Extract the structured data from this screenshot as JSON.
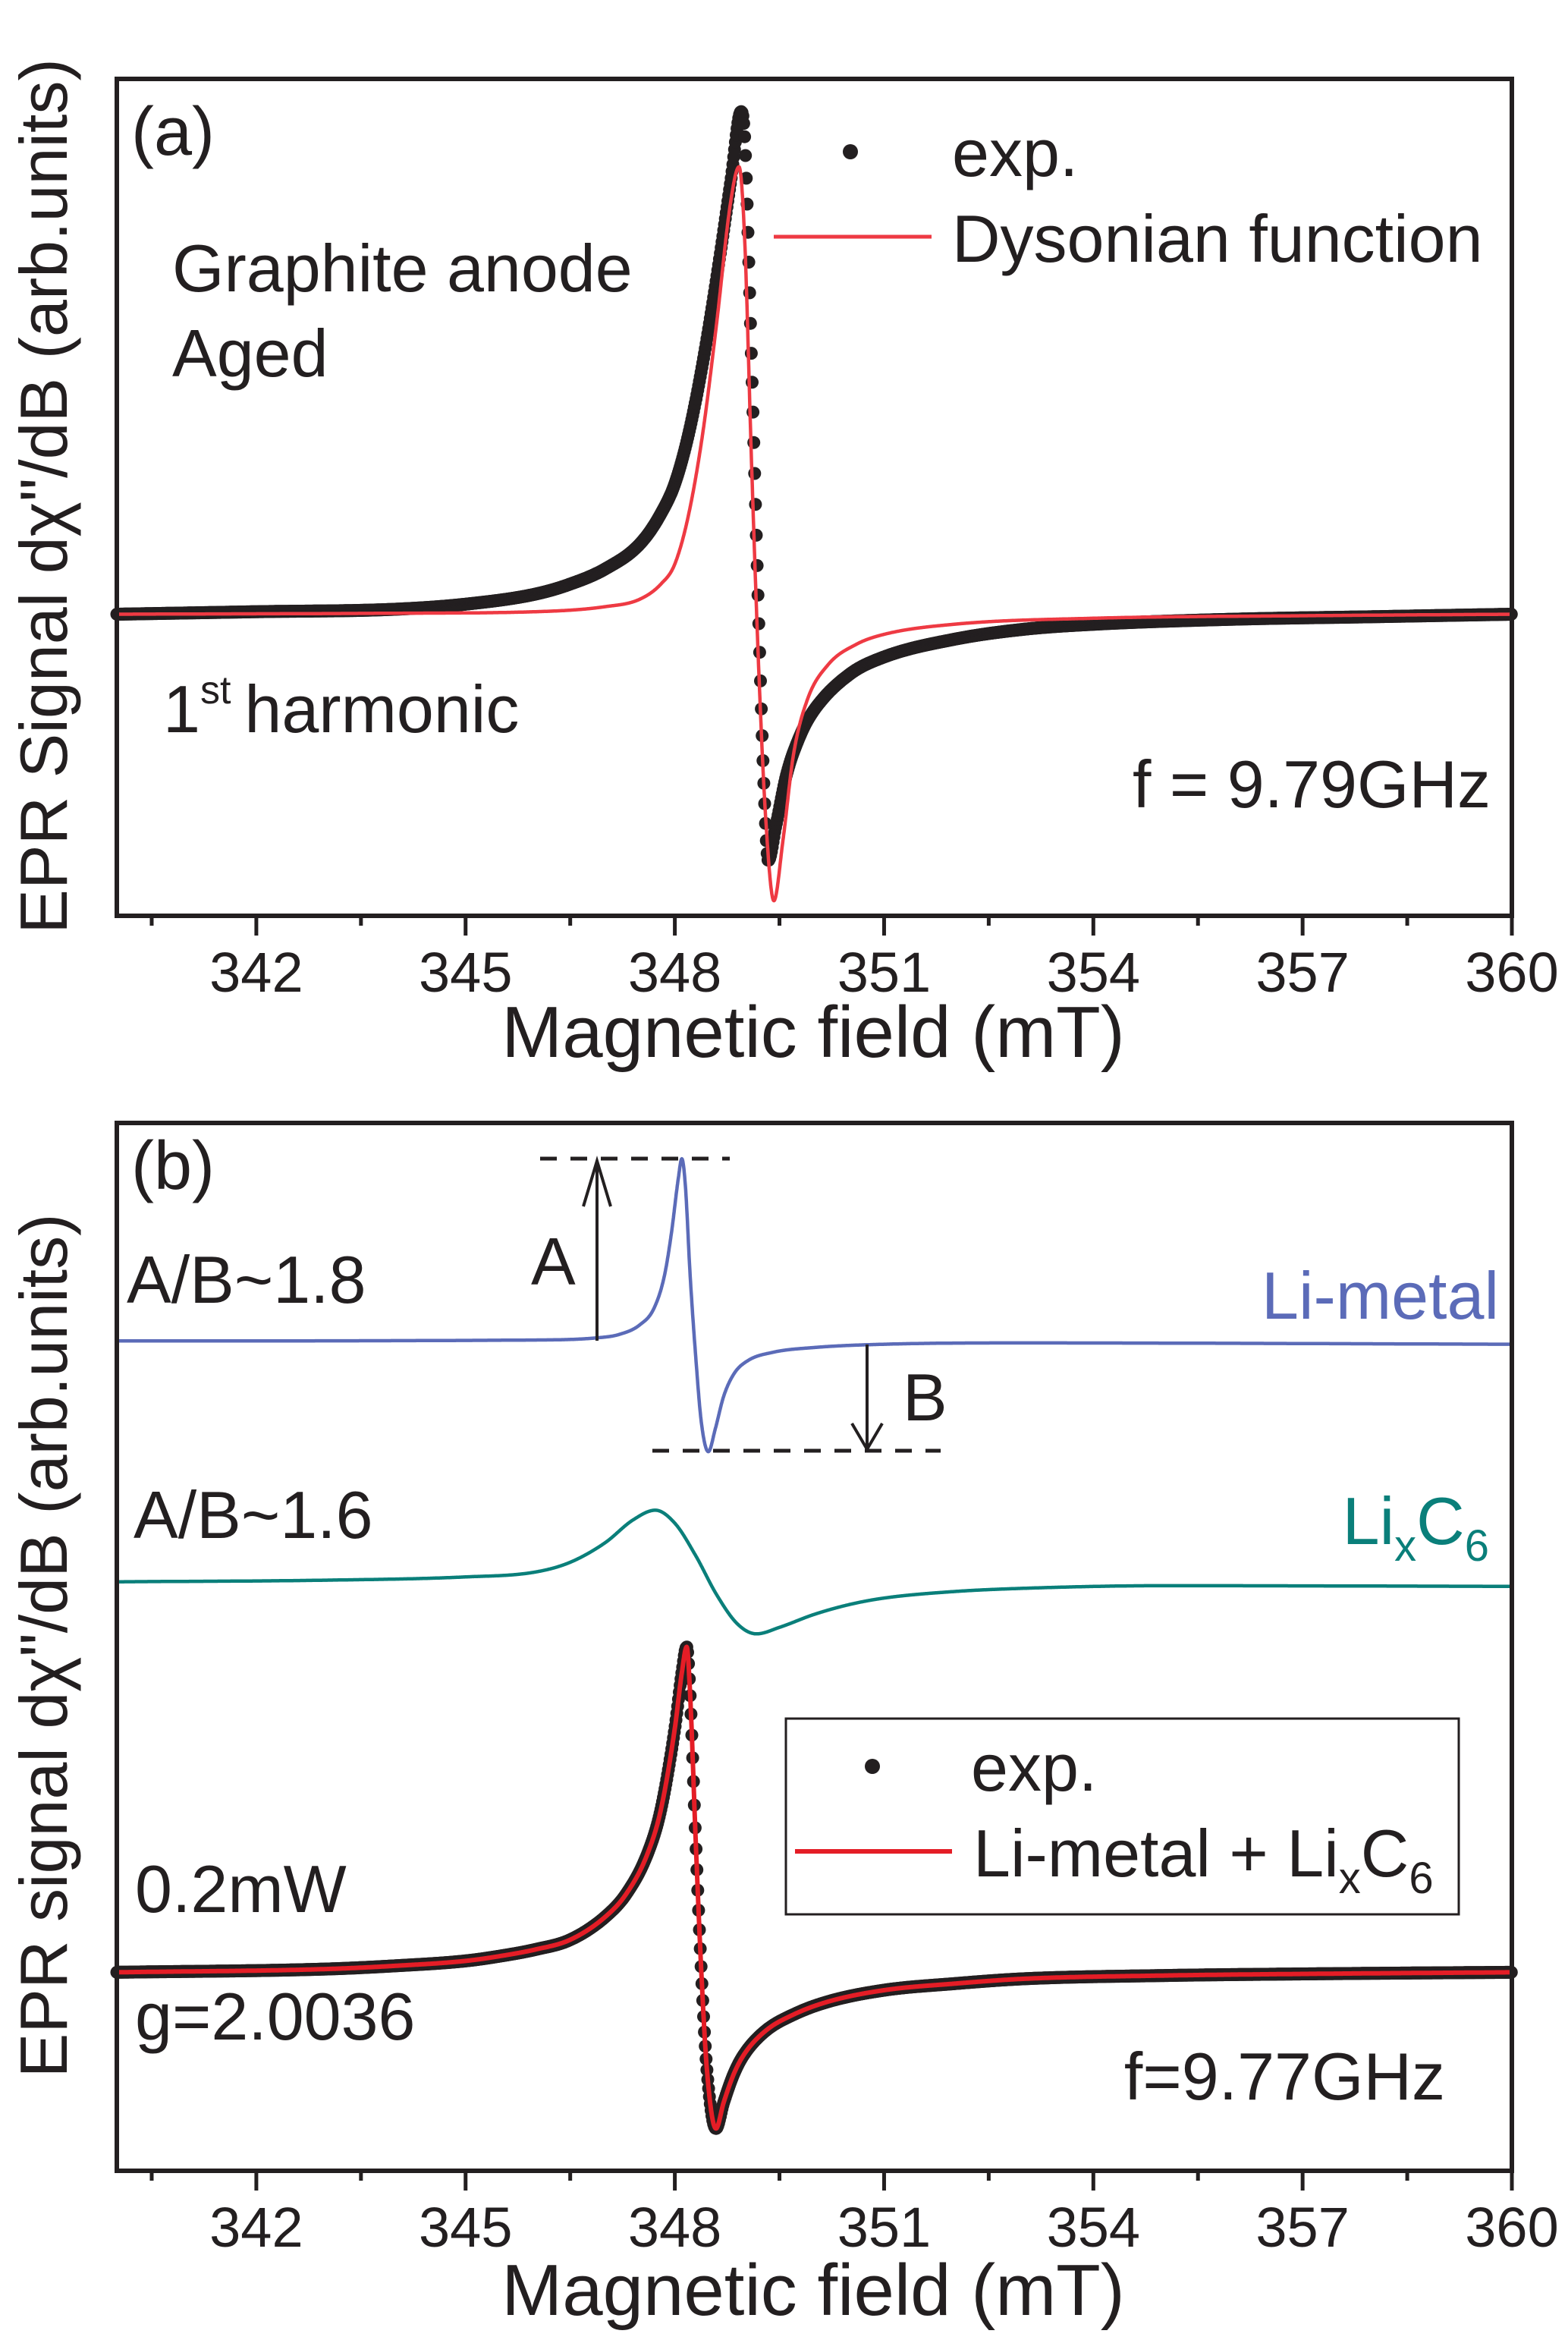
{
  "colors": {
    "axis": "#231f20",
    "exp": "#231f20",
    "fit_a": "#ee3a43",
    "fit_b": "#e41d26",
    "li_metal": "#5b6bb8",
    "lixc6": "#0a7f7a"
  },
  "chart_data": [
    {
      "panel": "(a)",
      "type": "line",
      "title": "",
      "xlabel": "Magnetic field (mT)",
      "ylabel": "EPR Signal dχ\"/dB (arb.units)",
      "xlim": [
        340,
        360
      ],
      "ylim": [
        -0.6,
        1.065
      ],
      "xticks": [
        342,
        345,
        348,
        351,
        354,
        357,
        360
      ],
      "xtick_labels": [
        "342",
        "345",
        "348",
        "351",
        "354",
        "357",
        "360"
      ],
      "minor_xticks": [
        340.5,
        343.5,
        346.5,
        349.5,
        352.5,
        355.5,
        358.5
      ],
      "grid": false,
      "legend_position": "top-right",
      "annotations": {
        "sample_line1": "Graphite anode",
        "sample_line2": "Aged",
        "harmonic_num": "1",
        "harmonic_sup": "st",
        "harmonic_word": "harmonic",
        "frequency": "f = 9.79GHz"
      },
      "series": [
        {
          "name": "exp.",
          "style": "markers",
          "color_key": "exp",
          "x": [
            340,
            342,
            344,
            345,
            346,
            346.5,
            347,
            347.5,
            347.8,
            348.0,
            348.2,
            348.4,
            348.6,
            348.8,
            348.95,
            349.0,
            349.1,
            349.2,
            349.28,
            349.34,
            349.45,
            349.6,
            349.8,
            350.0,
            350.5,
            351,
            352,
            353,
            354,
            356,
            358,
            360
          ],
          "y": [
            0,
            0.005,
            0.01,
            0.02,
            0.04,
            0.06,
            0.09,
            0.14,
            0.2,
            0.26,
            0.36,
            0.5,
            0.67,
            0.86,
            1.0,
            0.95,
            0.5,
            0.0,
            -0.35,
            -0.49,
            -0.42,
            -0.32,
            -0.24,
            -0.19,
            -0.12,
            -0.085,
            -0.05,
            -0.03,
            -0.02,
            -0.01,
            -0.005,
            0
          ]
        },
        {
          "name": "Dysonian function",
          "style": "line",
          "color_key": "fit_a",
          "x": [
            340,
            344,
            346,
            347,
            347.5,
            347.8,
            348.0,
            348.2,
            348.4,
            348.6,
            348.8,
            348.92,
            349.0,
            349.1,
            349.2,
            349.3,
            349.42,
            349.55,
            349.7,
            349.9,
            350.2,
            350.6,
            351,
            352,
            354,
            357,
            360
          ],
          "y": [
            0,
            0.002,
            0.005,
            0.015,
            0.03,
            0.06,
            0.1,
            0.2,
            0.36,
            0.58,
            0.82,
            0.89,
            0.75,
            0.3,
            -0.1,
            -0.4,
            -0.57,
            -0.45,
            -0.28,
            -0.17,
            -0.1,
            -0.06,
            -0.04,
            -0.02,
            -0.008,
            -0.003,
            0
          ]
        }
      ]
    },
    {
      "panel": "(b)",
      "type": "line",
      "title": "",
      "xlabel": "Magnetic field (mT)",
      "ylabel": "EPR signal dχ\"/dB (arb.units)",
      "xlim": [
        340,
        360
      ],
      "ylim": [
        -0.61,
        2.61
      ],
      "xticks": [
        342,
        345,
        348,
        351,
        354,
        357,
        360
      ],
      "xtick_labels": [
        "342",
        "345",
        "348",
        "351",
        "354",
        "357",
        "360"
      ],
      "minor_xticks": [
        340.5,
        343.5,
        346.5,
        349.5,
        352.5,
        355.5,
        358.5
      ],
      "grid": false,
      "legend_position": "center-right",
      "annotations": {
        "ratio_li_metal": "A/B~1.8",
        "ratio_lixc6": "A/B~1.6",
        "label_A": "A",
        "label_B": "B",
        "power": "0.2mW",
        "g_factor": "g=2.0036",
        "frequency": "f=9.77GHz",
        "A_marker": {
          "x": 346.9,
          "y_from": 1.94,
          "y_to": 2.5
        },
        "B_marker": {
          "x": 350.74,
          "y_from": 1.93,
          "y_to": 1.6
        }
      },
      "series": [
        {
          "name": "Li-metal",
          "label_main": "Li-metal",
          "style": "line",
          "color_key": "li_metal",
          "offset": 1.94,
          "x": [
            340,
            346,
            346.9,
            347.2,
            347.5,
            347.7,
            347.85,
            347.95,
            348.05,
            348.1,
            348.15,
            348.22,
            348.3,
            348.38,
            348.48,
            348.58,
            348.7,
            348.85,
            349.05,
            349.4,
            350,
            351,
            353,
            360
          ],
          "y": [
            0,
            0.003,
            0.01,
            0.02,
            0.05,
            0.1,
            0.2,
            0.33,
            0.5,
            0.56,
            0.48,
            0.2,
            -0.05,
            -0.25,
            -0.34,
            -0.27,
            -0.17,
            -0.1,
            -0.06,
            -0.035,
            -0.02,
            -0.01,
            -0.006,
            -0.01
          ]
        },
        {
          "name": "LixC6",
          "label_main": "Li",
          "label_sub1": "x",
          "label_mid": "C",
          "label_sub2": "6",
          "style": "line",
          "color_key": "lixc6",
          "offset": 1.2,
          "x": [
            340,
            343,
            345,
            346,
            346.5,
            347,
            347.4,
            347.72,
            348.0,
            348.3,
            348.6,
            348.9,
            349.17,
            349.5,
            350,
            350.5,
            351,
            352,
            353,
            355,
            360
          ],
          "y": [
            0,
            0.005,
            0.015,
            0.03,
            0.06,
            0.12,
            0.19,
            0.22,
            0.18,
            0.08,
            -0.04,
            -0.13,
            -0.16,
            -0.14,
            -0.1,
            -0.07,
            -0.05,
            -0.03,
            -0.02,
            -0.012,
            -0.014
          ]
        },
        {
          "name": "exp.",
          "style": "markers",
          "color_key": "exp",
          "offset": 0,
          "x": [
            340,
            343,
            344,
            345,
            345.5,
            346,
            346.5,
            347,
            347.3,
            347.6,
            347.8,
            348.0,
            348.1,
            348.17,
            348.22,
            348.3,
            348.38,
            348.46,
            348.59,
            348.7,
            348.85,
            349.0,
            349.3,
            349.7,
            350.2,
            351,
            352,
            353,
            355,
            357,
            360
          ],
          "y": [
            0,
            0.01,
            0.02,
            0.035,
            0.05,
            0.07,
            0.1,
            0.17,
            0.24,
            0.36,
            0.5,
            0.75,
            0.92,
            1.0,
            0.85,
            0.4,
            0.0,
            -0.3,
            -0.48,
            -0.4,
            -0.31,
            -0.25,
            -0.18,
            -0.13,
            -0.09,
            -0.055,
            -0.035,
            -0.02,
            -0.01,
            -0.005,
            0
          ]
        },
        {
          "name": "Li-metal + LixC6",
          "legend_main": "Li-metal + Li",
          "legend_sub1": "x",
          "legend_mid": "C",
          "legend_sub2": "6",
          "style": "line",
          "color_key": "fit_b",
          "offset": 0,
          "x": [
            340,
            343,
            344,
            345,
            345.5,
            346,
            346.5,
            347,
            347.3,
            347.6,
            347.8,
            348.0,
            348.1,
            348.17,
            348.22,
            348.3,
            348.38,
            348.46,
            348.59,
            348.7,
            348.85,
            349.0,
            349.3,
            349.7,
            350.2,
            351,
            352,
            353,
            355,
            357,
            360
          ],
          "y": [
            0,
            0.01,
            0.02,
            0.035,
            0.05,
            0.07,
            0.1,
            0.17,
            0.24,
            0.36,
            0.5,
            0.75,
            0.92,
            1.0,
            0.85,
            0.4,
            0.0,
            -0.3,
            -0.48,
            -0.4,
            -0.31,
            -0.25,
            -0.18,
            -0.13,
            -0.09,
            -0.055,
            -0.035,
            -0.02,
            -0.01,
            -0.005,
            0
          ]
        }
      ]
    }
  ]
}
